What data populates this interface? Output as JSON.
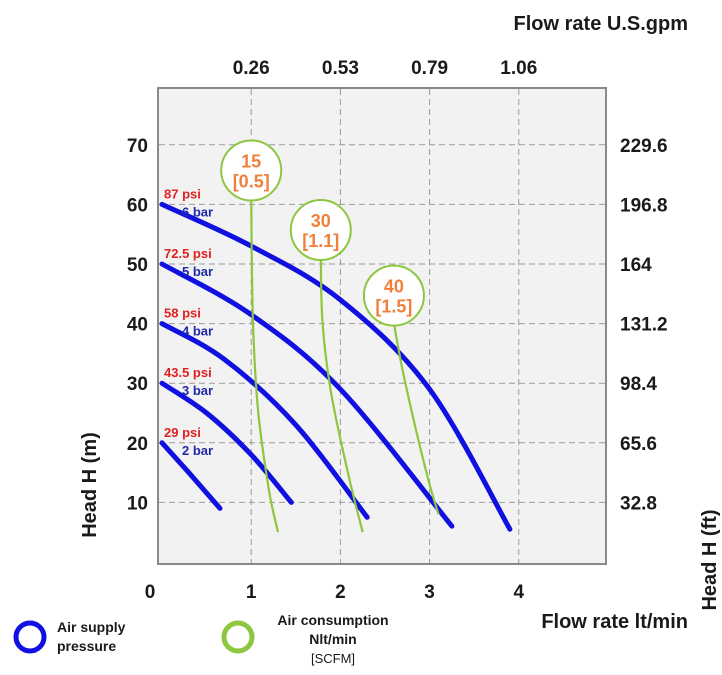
{
  "chart_data": {
    "type": "line",
    "x_bottom": {
      "label": "Flow rate  lt/min",
      "range": [
        0,
        5
      ],
      "ticks": [
        {
          "value": 0,
          "label": "0"
        },
        {
          "value": 1,
          "label": "1"
        },
        {
          "value": 2,
          "label": "2"
        },
        {
          "value": 3,
          "label": "3"
        },
        {
          "value": 4,
          "label": "4"
        }
      ]
    },
    "x_top": {
      "label": "Flow rate U.S.gpm",
      "ticks": [
        {
          "value": 1,
          "label": "0.26"
        },
        {
          "value": 2,
          "label": "0.53"
        },
        {
          "value": 3,
          "label": "0.79"
        },
        {
          "value": 4,
          "label": "1.06"
        }
      ]
    },
    "y_left": {
      "label": "Head H (m)",
      "range": [
        0,
        80
      ],
      "ticks": [
        {
          "value": 10,
          "label": "10"
        },
        {
          "value": 20,
          "label": "20"
        },
        {
          "value": 30,
          "label": "30"
        },
        {
          "value": 40,
          "label": "40"
        },
        {
          "value": 50,
          "label": "50"
        },
        {
          "value": 60,
          "label": "60"
        },
        {
          "value": 70,
          "label": "70"
        }
      ]
    },
    "y_right": {
      "label": "Head H (ft)",
      "ticks": [
        {
          "value": 10,
          "label": "32.8"
        },
        {
          "value": 20,
          "label": "65.6"
        },
        {
          "value": 30,
          "label": "98.4"
        },
        {
          "value": 40,
          "label": "131.2"
        },
        {
          "value": 50,
          "label": "164"
        },
        {
          "value": 60,
          "label": "196.8"
        },
        {
          "value": 70,
          "label": "229.6"
        }
      ]
    },
    "grid": true,
    "pressure_series": [
      {
        "psi": "29 psi",
        "bar": "2 bar",
        "color": "#1010e0",
        "points": [
          [
            0,
            20
          ],
          [
            0.3,
            15
          ],
          [
            0.65,
            9
          ]
        ]
      },
      {
        "psi": "43.5 psi",
        "bar": "3 bar",
        "color": "#1010e0",
        "points": [
          [
            0,
            30
          ],
          [
            0.5,
            25
          ],
          [
            1,
            18
          ],
          [
            1.45,
            10
          ]
        ]
      },
      {
        "psi": "58 psi",
        "bar": "4 bar",
        "color": "#1010e0",
        "points": [
          [
            0,
            40
          ],
          [
            0.7,
            34
          ],
          [
            1.5,
            23
          ],
          [
            2.3,
            7.5
          ]
        ]
      },
      {
        "psi": "72.5 psi",
        "bar": "5 bar",
        "color": "#1010e0",
        "points": [
          [
            0,
            50
          ],
          [
            1,
            41.5
          ],
          [
            2,
            29
          ],
          [
            3.25,
            6
          ]
        ]
      },
      {
        "psi": "87 psi",
        "bar": "6 bar",
        "color": "#1010e0",
        "points": [
          [
            0,
            60
          ],
          [
            1,
            53
          ],
          [
            2,
            44
          ],
          [
            3,
            29
          ],
          [
            3.9,
            5.5
          ]
        ]
      }
    ],
    "consumption_series": [
      {
        "label": "15",
        "sub": "[0.5]",
        "color": "#8dc63f",
        "points": [
          [
            1.0,
            61
          ],
          [
            1.02,
            40
          ],
          [
            1.08,
            25
          ],
          [
            1.2,
            12
          ],
          [
            1.3,
            5
          ]
        ]
      },
      {
        "label": "30",
        "sub": "[1.1]",
        "color": "#8dc63f",
        "points": [
          [
            1.78,
            51
          ],
          [
            1.8,
            40
          ],
          [
            1.9,
            28
          ],
          [
            2.1,
            14
          ],
          [
            2.25,
            5
          ]
        ]
      },
      {
        "label": "40",
        "sub": "[1.5]",
        "color": "#8dc63f",
        "points": [
          [
            2.6,
            40
          ],
          [
            2.7,
            32
          ],
          [
            2.85,
            22
          ],
          [
            3.0,
            13
          ],
          [
            3.1,
            8
          ]
        ]
      }
    ]
  },
  "legend": {
    "pressure": {
      "line1": "Air supply",
      "line2": "pressure",
      "color": "#1010e0"
    },
    "consumption": {
      "line1": "Air consumption",
      "line2": "Nlt/min",
      "line3": "[SCFM]",
      "color": "#8dc63f"
    }
  }
}
